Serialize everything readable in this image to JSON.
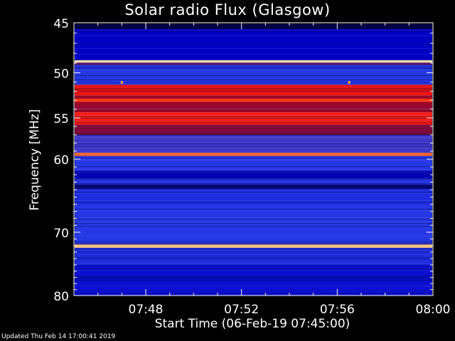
{
  "title": "Solar radio Flux (Glasgow)",
  "updated": "Updated Thu Feb 14 17:00:41 2019",
  "colors": {
    "background": "#000000",
    "axis": "#ffffff",
    "colormap": [
      "#000010",
      "#00004a",
      "#0000c8",
      "#2b3fe8",
      "#5a2a9a",
      "#7a0c3c",
      "#c8001a",
      "#ff2010",
      "#ff9a30",
      "#fff8e0"
    ]
  },
  "chart_data": {
    "type": "heatmap",
    "title": "Solar radio Flux (Glasgow)",
    "xlabel": "Start Time (06-Feb-19 07:45:00)",
    "ylabel": "Frequency [MHz]",
    "x_start": "07:45",
    "x_end": "08:00",
    "xlim_minutes_after_start": [
      0,
      15
    ],
    "x_ticks": [
      "07:48",
      "07:52",
      "07:56",
      "08:00"
    ],
    "x_tick_minutes": [
      3,
      7,
      11,
      15
    ],
    "ylim_mhz": [
      45,
      80
    ],
    "y_scale": "log",
    "y_axis_direction": "increasing downward",
    "y_ticks": [
      45,
      50,
      55,
      60,
      70,
      80
    ],
    "bands": [
      {
        "mhz": [
          45.1,
          45.6
        ],
        "level": 0.1
      },
      {
        "mhz": [
          45.6,
          48.7
        ],
        "level": 0.22
      },
      {
        "mhz": [
          48.7,
          48.95
        ],
        "level": 0.97
      },
      {
        "mhz": [
          48.95,
          49.2
        ],
        "level": 0.48
      },
      {
        "mhz": [
          49.2,
          51.3
        ],
        "level": 0.32
      },
      {
        "mhz": [
          51.3,
          52.5
        ],
        "level": 0.74
      },
      {
        "mhz": [
          52.5,
          52.8
        ],
        "level": 0.6
      },
      {
        "mhz": [
          52.8,
          53.2
        ],
        "level": 0.8
      },
      {
        "mhz": [
          53.2,
          54.3
        ],
        "level": 0.6
      },
      {
        "mhz": [
          54.3,
          55.8
        ],
        "level": 0.76
      },
      {
        "mhz": [
          55.8,
          57.0
        ],
        "level": 0.56
      },
      {
        "mhz": [
          57.0,
          59.2
        ],
        "level": 0.38
      },
      {
        "mhz": [
          59.2,
          59.6
        ],
        "level": 0.84
      },
      {
        "mhz": [
          59.6,
          61.5
        ],
        "level": 0.32
      },
      {
        "mhz": [
          61.5,
          62.5
        ],
        "level": 0.2
      },
      {
        "mhz": [
          62.5,
          63.3
        ],
        "level": 0.32
      },
      {
        "mhz": [
          63.3,
          63.9
        ],
        "level": 0.14
      },
      {
        "mhz": [
          63.9,
          66.0
        ],
        "level": 0.3
      },
      {
        "mhz": [
          66.0,
          71.8
        ],
        "level": 0.32
      },
      {
        "mhz": [
          71.8,
          72.35
        ],
        "level": 0.94
      },
      {
        "mhz": [
          72.35,
          75.0
        ],
        "level": 0.3
      },
      {
        "mhz": [
          75.0,
          80.0
        ],
        "level": 0.25
      }
    ],
    "spots": [
      {
        "minute": 2.0,
        "mhz": 51.0,
        "level": 0.9
      },
      {
        "minute": 11.5,
        "mhz": 51.0,
        "level": 0.9
      }
    ]
  }
}
